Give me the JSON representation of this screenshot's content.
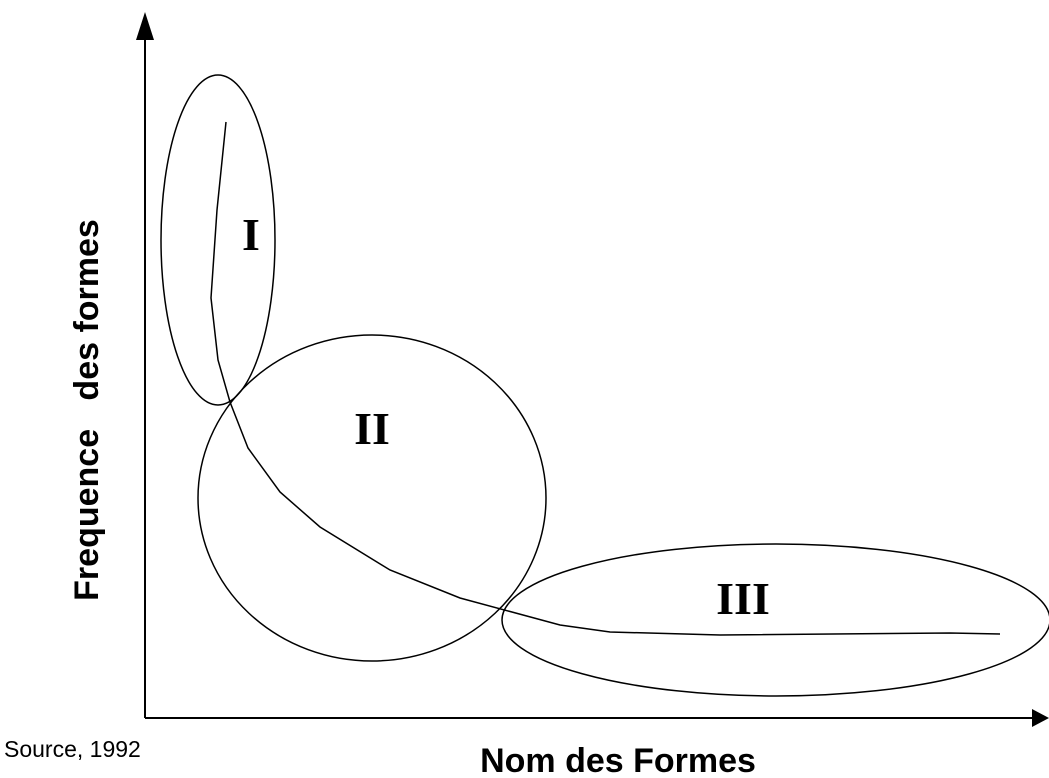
{
  "axes": {
    "y_label": "Frequence   des formes",
    "x_label": "Nom des Formes"
  },
  "zones": [
    {
      "label": "I"
    },
    {
      "label": "II"
    },
    {
      "label": "III"
    }
  ],
  "source": "Source, 1992"
}
